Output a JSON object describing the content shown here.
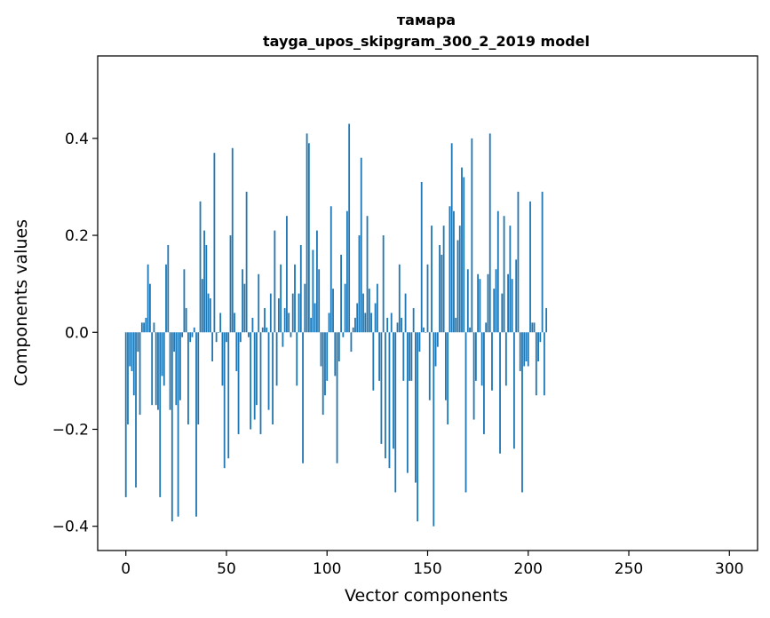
{
  "chart_data": {
    "type": "bar",
    "title": "тамара",
    "subtitle": "tayga_upos_skipgram_300_2_2019 model",
    "xlabel": "Vector components",
    "ylabel": "Components values",
    "xlim": [
      -14,
      314
    ],
    "ylim": [
      -0.45,
      0.57
    ],
    "x_ticks": [
      0,
      50,
      100,
      150,
      200,
      250,
      300
    ],
    "x_tick_labels": [
      "0",
      "50",
      "100",
      "150",
      "200",
      "250",
      "300"
    ],
    "y_ticks": [
      -0.4,
      -0.2,
      0.0,
      0.2,
      0.4
    ],
    "y_tick_labels": [
      "−0.4",
      "−0.2",
      "0.0",
      "0.2",
      "0.4"
    ],
    "grid": false,
    "series": [
      {
        "color": "#1f77b4",
        "x_start": 0,
        "values": [
          -0.34,
          -0.19,
          -0.07,
          -0.08,
          -0.13,
          -0.32,
          -0.04,
          -0.17,
          0.02,
          0.02,
          0.03,
          0.14,
          0.1,
          -0.15,
          0.02,
          -0.15,
          -0.16,
          -0.34,
          -0.09,
          -0.11,
          0.14,
          0.18,
          -0.16,
          -0.39,
          -0.04,
          -0.15,
          -0.38,
          -0.14,
          -0.01,
          0.13,
          0.05,
          -0.19,
          -0.02,
          -0.01,
          0.01,
          -0.38,
          -0.19,
          0.27,
          0.11,
          0.21,
          0.18,
          0.08,
          0.07,
          -0.06,
          0.37,
          -0.02,
          0.0,
          0.04,
          -0.11,
          -0.28,
          -0.02,
          -0.26,
          0.2,
          0.38,
          0.04,
          -0.08,
          -0.21,
          -0.02,
          0.13,
          0.1,
          0.29,
          -0.01,
          -0.2,
          0.03,
          -0.18,
          -0.15,
          0.12,
          -0.21,
          0.01,
          0.05,
          0.01,
          -0.16,
          0.08,
          -0.19,
          0.21,
          -0.11,
          0.07,
          0.14,
          -0.03,
          0.05,
          0.24,
          0.04,
          -0.01,
          0.08,
          0.14,
          -0.11,
          0.08,
          0.18,
          -0.27,
          0.1,
          0.41,
          0.39,
          0.03,
          0.17,
          0.06,
          0.21,
          0.13,
          -0.07,
          -0.17,
          -0.13,
          -0.1,
          0.04,
          0.26,
          0.09,
          -0.09,
          -0.27,
          -0.06,
          0.16,
          -0.01,
          0.1,
          0.25,
          0.43,
          -0.04,
          0.01,
          0.03,
          0.06,
          0.2,
          0.36,
          0.08,
          0.04,
          0.24,
          0.09,
          0.04,
          -0.12,
          0.06,
          0.1,
          -0.1,
          -0.23,
          0.2,
          -0.26,
          0.03,
          -0.28,
          0.04,
          -0.24,
          -0.33,
          0.02,
          0.14,
          0.03,
          -0.1,
          0.08,
          -0.29,
          -0.1,
          -0.1,
          0.05,
          -0.31,
          -0.39,
          -0.04,
          0.31,
          0.01,
          0.0,
          0.14,
          -0.14,
          0.22,
          -0.4,
          -0.07,
          -0.03,
          0.18,
          0.16,
          0.22,
          -0.14,
          -0.19,
          0.26,
          0.39,
          0.25,
          0.03,
          0.19,
          0.22,
          0.34,
          0.32,
          -0.33,
          0.13,
          0.01,
          0.4,
          -0.18,
          -0.1,
          0.12,
          0.11,
          -0.11,
          -0.21,
          0.02,
          0.12,
          0.41,
          -0.12,
          0.09,
          0.13,
          0.25,
          -0.25,
          0.08,
          0.24,
          -0.11,
          0.12,
          0.22,
          0.11,
          -0.24,
          0.15,
          0.29,
          -0.08,
          -0.33,
          -0.07,
          -0.06,
          -0.07,
          0.27,
          0.02,
          0.02,
          -0.13,
          -0.06,
          -0.02,
          0.29,
          -0.13,
          0.05
        ]
      }
    ]
  }
}
